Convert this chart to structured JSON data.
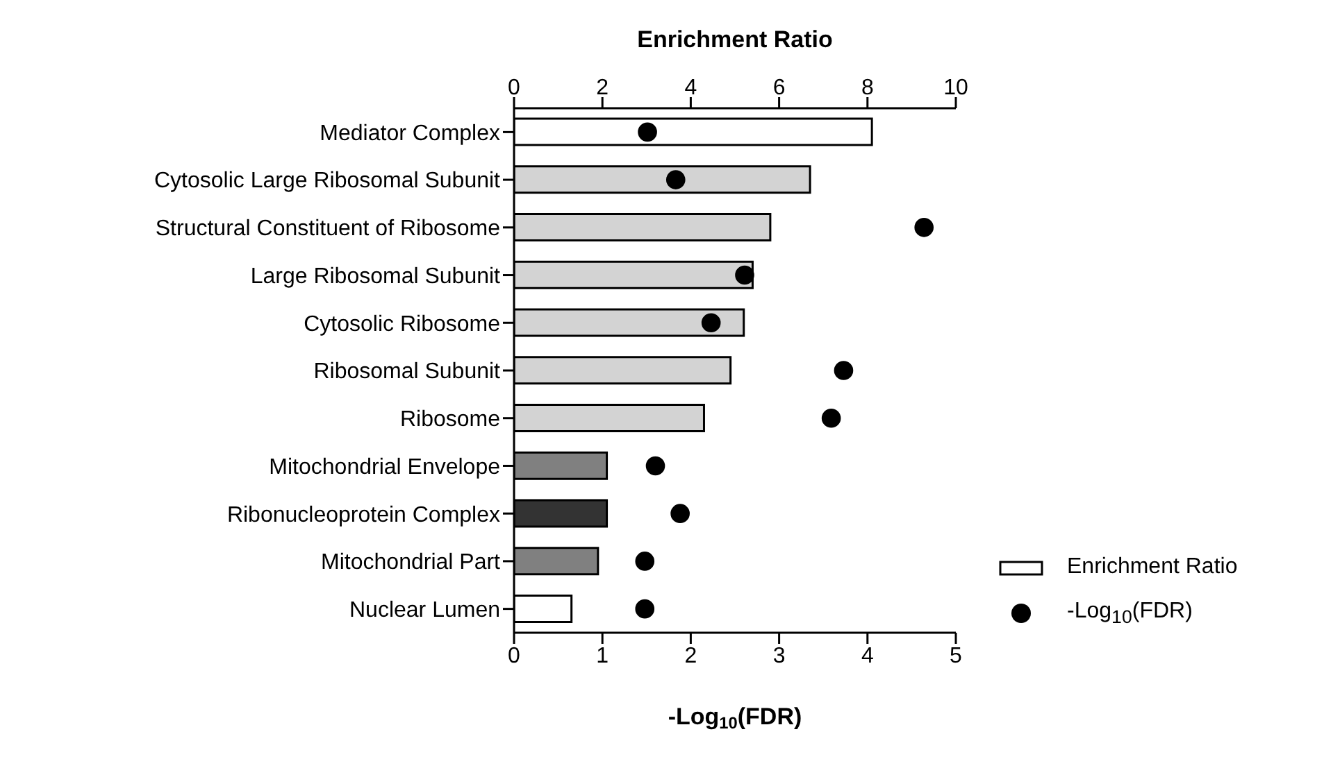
{
  "chart_data": {
    "type": "bar",
    "orientation": "horizontal",
    "categories": [
      "Mediator Complex",
      "Cytosolic Large Ribosomal Subunit",
      "Structural Constituent of Ribosome",
      "Large Ribosomal Subunit",
      "Cytosolic Ribosome",
      "Ribosomal Subunit",
      "Ribosome",
      "Mitochondrial Envelope",
      "Ribonucleoprotein Complex",
      "Mitochondrial Part",
      "Nuclear Lumen"
    ],
    "series": [
      {
        "name": "Enrichment Ratio",
        "axis": "x2",
        "color": "#ffffff",
        "colors": [
          "#ffffff",
          "#d3d3d3",
          "#d3d3d3",
          "#d3d3d3",
          "#d3d3d3",
          "#d3d3d3",
          "#d3d3d3",
          "#808080",
          "#333333",
          "#808080",
          "#ffffff"
        ],
        "values": [
          8.1,
          6.7,
          5.8,
          5.4,
          5.2,
          4.9,
          4.3,
          2.1,
          2.1,
          1.9,
          1.3
        ]
      },
      {
        "name": "-Log$_{10}$(FDR)",
        "type": "scatter",
        "color": "#000000",
        "marker": "circle",
        "values": [
          1.51,
          1.83,
          4.64,
          2.61,
          2.23,
          3.73,
          3.59,
          1.6,
          1.88,
          1.48,
          1.48
        ]
      }
    ],
    "xlim": [
      0,
      5
    ],
    "xticks": [
      0,
      1,
      2,
      3,
      4,
      5
    ],
    "xlabel": "-Log$_{10}$(FDR)",
    "x2lim": [
      0,
      10
    ],
    "x2ticks": [
      0,
      2,
      4,
      6,
      8,
      10
    ],
    "x2label": "Enrichment Ratio",
    "legend": "right"
  }
}
